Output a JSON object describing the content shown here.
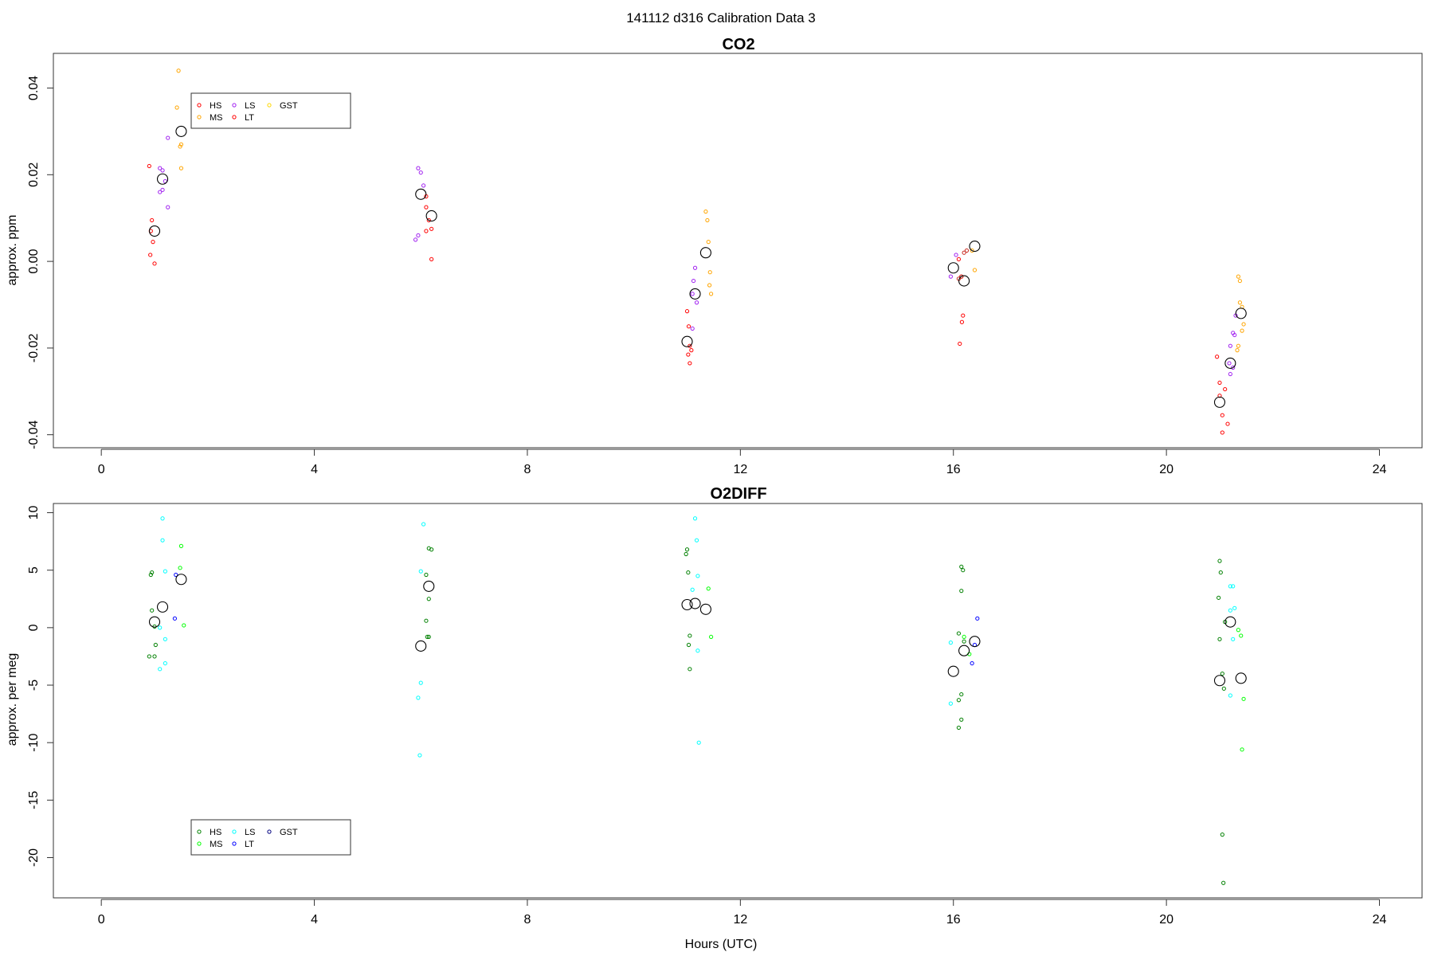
{
  "figure": {
    "title": "141112   d316   Calibration Data 3",
    "xlabel": "Hours (UTC)"
  },
  "chart_data": [
    {
      "type": "scatter",
      "title": "CO2",
      "xlabel": "",
      "ylabel": "approx. ppm",
      "xlim": [
        -0.9,
        24.8
      ],
      "ylim": [
        -0.043,
        0.048
      ],
      "xticks": [
        0,
        4,
        8,
        12,
        16,
        20,
        24
      ],
      "xtick_labels": [
        "0",
        "4",
        "8",
        "12",
        "16",
        "20",
        "24"
      ],
      "yticks": [
        -0.04,
        -0.02,
        0.0,
        0.02,
        0.04
      ],
      "ytick_labels": [
        "-0.04",
        "-0.02",
        "0.00",
        "0.02",
        "0.04"
      ],
      "grid": false,
      "legend": {
        "position": "top-left",
        "entries": [
          {
            "label": "HS",
            "color": "#ff0000"
          },
          {
            "label": "MS",
            "color": "#ffa500"
          },
          {
            "label": "LS",
            "color": "#a020f0"
          },
          {
            "label": "LT",
            "color": "#ff0000"
          },
          {
            "label": "GST",
            "color": "#ffd700"
          }
        ]
      },
      "series": [
        {
          "name": "HS",
          "color": "#ff0000",
          "points": [
            [
              0.9,
              0.022
            ],
            [
              0.95,
              0.0095
            ],
            [
              0.93,
              0.007
            ],
            [
              0.97,
              0.0045
            ],
            [
              0.92,
              0.0015
            ],
            [
              1.0,
              -0.0005
            ],
            [
              6.1,
              0.015
            ],
            [
              6.1,
              0.0125
            ],
            [
              6.15,
              0.0095
            ],
            [
              6.2,
              0.0075
            ],
            [
              6.1,
              0.007
            ],
            [
              6.2,
              0.0005
            ],
            [
              11.0,
              -0.0115
            ],
            [
              11.03,
              -0.015
            ],
            [
              11.05,
              -0.0195
            ],
            [
              11.08,
              -0.0205
            ],
            [
              11.02,
              -0.0215
            ],
            [
              11.05,
              -0.0235
            ],
            [
              16.1,
              0.0005
            ],
            [
              16.15,
              -0.0035
            ],
            [
              16.18,
              -0.0125
            ],
            [
              16.16,
              -0.014
            ],
            [
              16.12,
              -0.019
            ],
            [
              20.95,
              -0.022
            ],
            [
              21.0,
              -0.028
            ],
            [
              21.1,
              -0.0295
            ],
            [
              21.0,
              -0.031
            ],
            [
              21.05,
              -0.0355
            ],
            [
              21.15,
              -0.0375
            ],
            [
              21.05,
              -0.0395
            ]
          ]
        },
        {
          "name": "MS",
          "color": "#ffa500",
          "points": [
            [
              1.45,
              0.044
            ],
            [
              1.42,
              0.0355
            ],
            [
              1.5,
              0.027
            ],
            [
              1.48,
              0.0265
            ],
            [
              1.5,
              0.0215
            ],
            [
              11.35,
              0.0115
            ],
            [
              11.38,
              0.0095
            ],
            [
              11.4,
              0.0045
            ],
            [
              11.43,
              -0.0025
            ],
            [
              11.42,
              -0.0055
            ],
            [
              11.45,
              -0.0075
            ],
            [
              16.35,
              0.0025
            ],
            [
              16.4,
              -0.002
            ],
            [
              21.35,
              -0.0035
            ],
            [
              21.38,
              -0.0045
            ],
            [
              21.38,
              -0.0095
            ],
            [
              21.42,
              -0.0105
            ],
            [
              21.45,
              -0.0145
            ],
            [
              21.42,
              -0.016
            ],
            [
              21.35,
              -0.0195
            ],
            [
              21.33,
              -0.0205
            ]
          ]
        },
        {
          "name": "LS",
          "color": "#a020f0",
          "points": [
            [
              1.1,
              0.0215
            ],
            [
              1.15,
              0.021
            ],
            [
              1.25,
              0.0285
            ],
            [
              1.2,
              0.0185
            ],
            [
              1.15,
              0.0165
            ],
            [
              1.1,
              0.016
            ],
            [
              1.25,
              0.0125
            ],
            [
              5.95,
              0.0215
            ],
            [
              6.0,
              0.0205
            ],
            [
              6.05,
              0.0175
            ],
            [
              5.95,
              0.006
            ],
            [
              5.9,
              0.005
            ],
            [
              11.15,
              -0.0015
            ],
            [
              11.12,
              -0.0045
            ],
            [
              11.1,
              -0.0075
            ],
            [
              11.18,
              -0.0095
            ],
            [
              11.1,
              -0.0155
            ],
            [
              15.95,
              -0.0035
            ],
            [
              16.05,
              0.0015
            ],
            [
              21.3,
              -0.0125
            ],
            [
              21.25,
              -0.0165
            ],
            [
              21.28,
              -0.017
            ],
            [
              21.2,
              -0.0195
            ],
            [
              21.18,
              -0.0235
            ],
            [
              21.25,
              -0.0245
            ],
            [
              21.2,
              -0.026
            ]
          ]
        },
        {
          "name": "LT",
          "color": "#c8281e",
          "points": [
            [
              16.2,
              0.002
            ],
            [
              16.25,
              0.0025
            ],
            [
              16.15,
              -0.0035
            ],
            [
              16.1,
              -0.004
            ]
          ]
        },
        {
          "name": "GST",
          "color": "#ffd700",
          "points": []
        },
        {
          "name": "",
          "color": "#000000",
          "kind": "mean",
          "points": [
            [
              1.0,
              0.007
            ],
            [
              1.15,
              0.019
            ],
            [
              1.5,
              0.03
            ],
            [
              6.0,
              0.0155
            ],
            [
              6.2,
              0.0105
            ],
            [
              11.0,
              -0.0185
            ],
            [
              11.15,
              -0.0075
            ],
            [
              11.35,
              0.002
            ],
            [
              16.0,
              -0.0015
            ],
            [
              16.2,
              -0.0045
            ],
            [
              16.4,
              0.0035
            ],
            [
              21.0,
              -0.0325
            ],
            [
              21.2,
              -0.0235
            ],
            [
              21.4,
              -0.012
            ]
          ]
        }
      ]
    },
    {
      "type": "scatter",
      "title": "O2DIFF",
      "xlabel": "Hours (UTC)",
      "ylabel": "approx. per meg",
      "xlim": [
        -0.9,
        24.8
      ],
      "ylim": [
        -23.5,
        10.8
      ],
      "xticks": [
        0,
        4,
        8,
        12,
        16,
        20,
        24
      ],
      "xtick_labels": [
        "0",
        "4",
        "8",
        "12",
        "16",
        "20",
        "24"
      ],
      "yticks": [
        -20,
        -15,
        -10,
        -5,
        0,
        5,
        10
      ],
      "ytick_labels": [
        "-20",
        "-15",
        "-10",
        "-5",
        "0",
        "5",
        "10"
      ],
      "grid": false,
      "legend": {
        "position": "bottom-left",
        "entries": [
          {
            "label": "HS",
            "color": "#008000"
          },
          {
            "label": "MS",
            "color": "#00ff00"
          },
          {
            "label": "LS",
            "color": "#00ffff"
          },
          {
            "label": "LT",
            "color": "#0000ff"
          },
          {
            "label": "GST",
            "color": "#000080"
          }
        ]
      },
      "series": [
        {
          "name": "HS",
          "color": "#008000",
          "points": [
            [
              0.95,
              4.8
            ],
            [
              0.93,
              4.6
            ],
            [
              0.95,
              1.5
            ],
            [
              1.0,
              0.1
            ],
            [
              1.02,
              -1.5
            ],
            [
              0.9,
              -2.5
            ],
            [
              1.0,
              -2.5
            ],
            [
              6.1,
              4.6
            ],
            [
              6.15,
              6.9
            ],
            [
              6.2,
              6.8
            ],
            [
              6.15,
              2.5
            ],
            [
              6.1,
              0.6
            ],
            [
              6.15,
              -0.8
            ],
            [
              6.12,
              -0.8
            ],
            [
              11.0,
              6.8
            ],
            [
              10.98,
              6.4
            ],
            [
              11.02,
              4.8
            ],
            [
              11.05,
              -0.7
            ],
            [
              11.03,
              -1.5
            ],
            [
              11.05,
              -3.6
            ],
            [
              16.15,
              5.3
            ],
            [
              16.18,
              5.0
            ],
            [
              16.15,
              3.2
            ],
            [
              16.1,
              -0.5
            ],
            [
              16.2,
              -1.2
            ],
            [
              16.15,
              -5.8
            ],
            [
              16.1,
              -6.3
            ],
            [
              16.15,
              -8.0
            ],
            [
              16.1,
              -8.7
            ],
            [
              21.0,
              5.8
            ],
            [
              21.02,
              4.8
            ],
            [
              20.98,
              2.6
            ],
            [
              21.1,
              0.5
            ],
            [
              21.0,
              -1.0
            ],
            [
              21.05,
              -4.0
            ],
            [
              21.08,
              -5.3
            ],
            [
              21.05,
              -18.0
            ],
            [
              21.07,
              -22.2
            ]
          ]
        },
        {
          "name": "MS",
          "color": "#00ff00",
          "points": [
            [
              1.5,
              7.1
            ],
            [
              1.48,
              5.2
            ],
            [
              1.55,
              0.2
            ],
            [
              11.4,
              3.4
            ],
            [
              11.45,
              -0.8
            ],
            [
              16.2,
              -0.8
            ],
            [
              16.3,
              -2.3
            ],
            [
              21.35,
              -0.2
            ],
            [
              21.4,
              -0.7
            ],
            [
              21.45,
              -6.2
            ],
            [
              21.42,
              -10.6
            ]
          ]
        },
        {
          "name": "LS",
          "color": "#00ffff",
          "points": [
            [
              1.15,
              9.5
            ],
            [
              1.15,
              7.6
            ],
            [
              1.2,
              4.9
            ],
            [
              1.2,
              -1.0
            ],
            [
              1.1,
              0.0
            ],
            [
              1.2,
              -3.1
            ],
            [
              1.1,
              -3.6
            ],
            [
              6.05,
              9.0
            ],
            [
              6.0,
              4.9
            ],
            [
              6.0,
              -4.8
            ],
            [
              5.95,
              -6.1
            ],
            [
              5.98,
              -11.1
            ],
            [
              11.15,
              9.5
            ],
            [
              11.18,
              7.6
            ],
            [
              11.2,
              4.5
            ],
            [
              11.1,
              3.3
            ],
            [
              11.2,
              -2.0
            ],
            [
              11.22,
              -10.0
            ],
            [
              15.95,
              -1.3
            ],
            [
              15.95,
              -6.6
            ],
            [
              21.25,
              3.6
            ],
            [
              21.2,
              3.6
            ],
            [
              21.28,
              1.7
            ],
            [
              21.2,
              1.5
            ],
            [
              21.25,
              -1.0
            ],
            [
              21.2,
              -5.9
            ]
          ]
        },
        {
          "name": "LT",
          "color": "#0000ff",
          "points": [
            [
              1.4,
              4.6
            ],
            [
              1.38,
              0.8
            ],
            [
              16.45,
              0.8
            ],
            [
              16.4,
              -1.5
            ],
            [
              16.35,
              -3.1
            ]
          ]
        },
        {
          "name": "GST",
          "color": "#000080",
          "points": []
        },
        {
          "name": "",
          "color": "#000000",
          "kind": "mean",
          "points": [
            [
              1.0,
              0.5
            ],
            [
              1.15,
              1.8
            ],
            [
              1.5,
              4.2
            ],
            [
              6.0,
              -1.6
            ],
            [
              6.15,
              3.6
            ],
            [
              11.0,
              2.0
            ],
            [
              11.15,
              2.1
            ],
            [
              11.35,
              1.6
            ],
            [
              16.0,
              -3.8
            ],
            [
              16.2,
              -2.0
            ],
            [
              16.4,
              -1.2
            ],
            [
              21.0,
              -4.6
            ],
            [
              21.2,
              0.5
            ],
            [
              21.4,
              -4.4
            ]
          ]
        }
      ]
    }
  ]
}
